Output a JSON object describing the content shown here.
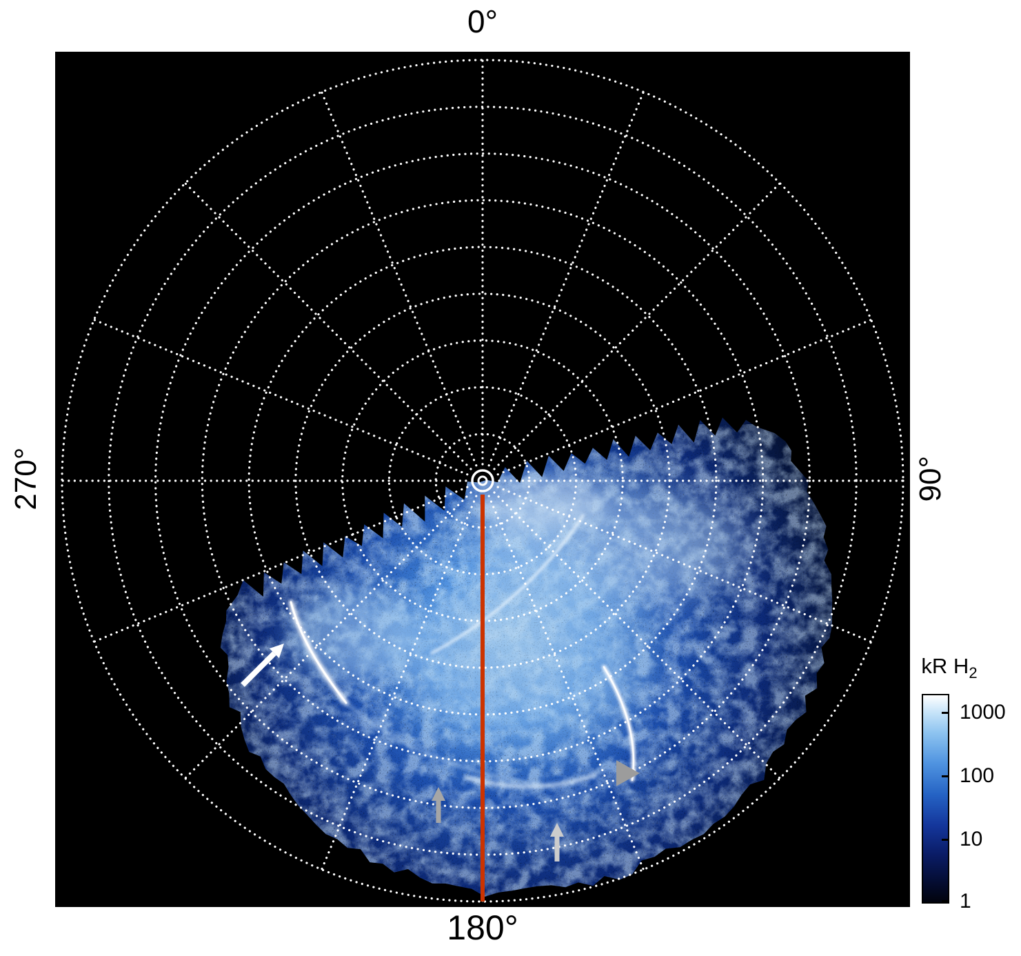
{
  "chart_data": {
    "type": "heatmap",
    "projection": "polar",
    "description_visible": "",
    "angle_labels": {
      "top": "0°",
      "right": "90°",
      "bottom": "180°",
      "left": "270°"
    },
    "angular_gridline_spacing_deg": 22.5,
    "radial_gridlines": 9,
    "grid_style": "dotted",
    "emission_sector_deg": [
      77,
      245
    ],
    "highlight_meridian_deg": 180,
    "colors": {
      "plot_background": "#000000",
      "grid": "#ffffff",
      "meridian_line": "#cc3300",
      "page_background": "#ffffff"
    },
    "colorbar": {
      "title_main": "kR H",
      "title_sub": "2",
      "scale": "log",
      "min": 1,
      "max": 1000,
      "tick_labels": [
        "1000",
        "100",
        "10",
        "1"
      ],
      "colormap": [
        "#ffffff",
        "#9fcbf2",
        "#4f93e0",
        "#1d4fae",
        "#0a1c66",
        "#020817"
      ]
    },
    "annotations": [
      {
        "shape": "arrow",
        "color": "#ffffff",
        "tail": [
          272,
          918
        ],
        "head": [
          332,
          858
        ],
        "width": 8
      },
      {
        "shape": "triangle",
        "color": "#9c9c9c",
        "tip": [
          848,
          1046
        ],
        "size": 34
      },
      {
        "shape": "arrow",
        "color": "#a6a6a6",
        "tail": [
          556,
          1118
        ],
        "head": [
          556,
          1066
        ],
        "width": 7
      },
      {
        "shape": "arrow",
        "color": "#cccccc",
        "tail": [
          728,
          1174
        ],
        "head": [
          728,
          1118
        ],
        "width": 7
      }
    ]
  }
}
